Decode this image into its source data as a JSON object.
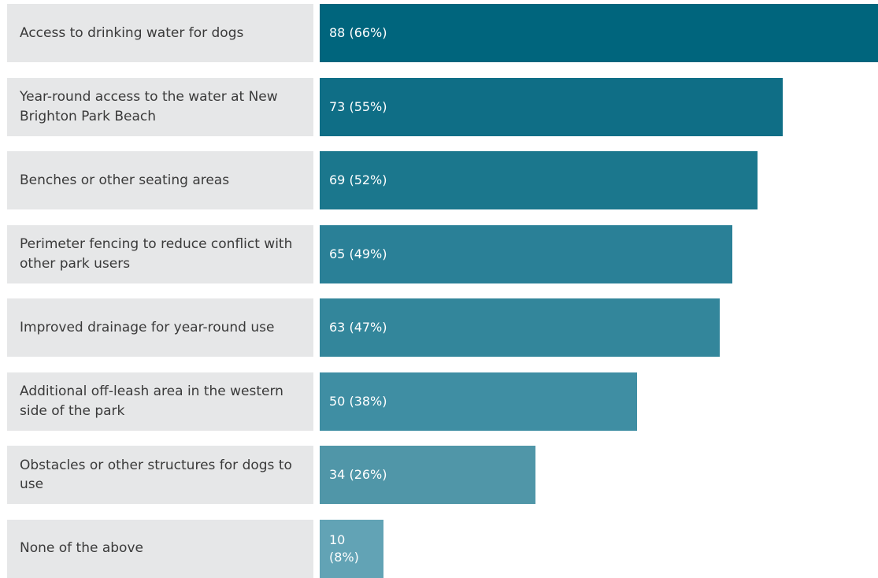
{
  "chart_data": {
    "type": "bar",
    "orientation": "horizontal",
    "categories": [
      "Access to drinking water for dogs",
      "Year-round access to the water at New Brighton Park Beach",
      "Benches or other seating areas",
      "Perimeter fencing to reduce conflict with other park users",
      "Improved drainage for year-round use",
      "Additional off-leash area in the western side of the park",
      "Obstacles or other structures for dogs to use",
      "None of the above"
    ],
    "values": [
      88,
      73,
      69,
      65,
      63,
      50,
      34,
      10
    ],
    "percents": [
      66,
      55,
      52,
      49,
      47,
      38,
      26,
      8
    ],
    "labels": [
      "88 (66%)",
      "73 (55%)",
      "69 (52%)",
      "65 (49%)",
      "63 (47%)",
      "50 (38%)",
      "34 (26%)",
      "10 (8%)"
    ],
    "colors": [
      "#00657d",
      "#0f6e86",
      "#1b778d",
      "#2a8097",
      "#33869b",
      "#3f8ea3",
      "#5096a8",
      "#62a3b5"
    ],
    "category_background": "#e6e7e8",
    "xlim": [
      0,
      88
    ],
    "grid": false,
    "legend": "none"
  }
}
